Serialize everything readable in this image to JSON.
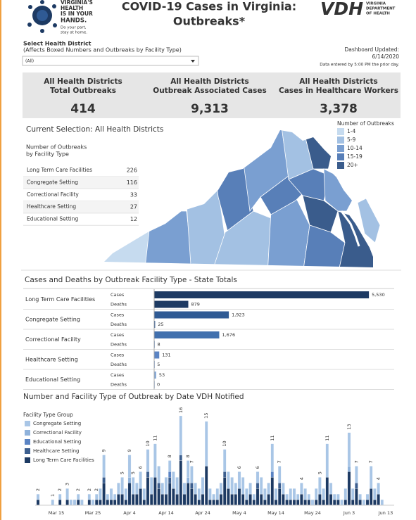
{
  "header": {
    "logo_lines": [
      "VIRGINIA'S",
      "HEALTH",
      "IS IN YOUR",
      "HANDS."
    ],
    "logo_tagline": [
      "Do your part,",
      "stay at home."
    ],
    "title_lines": [
      "COVID-19 Cases in Virginia:",
      "Outbreaks*"
    ],
    "agency_short": "VDH",
    "agency_lines": [
      "VIRGINIA",
      "DEPARTMENT",
      "OF HEALTH"
    ]
  },
  "filter": {
    "label": "Select Health District",
    "note": "(Affects Boxed Numbers and Outbreaks by Facility Type)",
    "selected": "(All)"
  },
  "updated": {
    "label": "Dashboard Updated:",
    "date": "6/14/2020",
    "note": "Data entered by 5:00 PM the prior day."
  },
  "kpis": [
    {
      "label": [
        "All Health Districts",
        "Total Outbreaks"
      ],
      "value": "414"
    },
    {
      "label": [
        "All Health Districts",
        "Outbreak Associated Cases"
      ],
      "value": "9,313"
    },
    {
      "label": [
        "All Health Districts",
        "Cases in Healthcare Workers"
      ],
      "value": "3,378"
    }
  ],
  "selection": {
    "title": "Current Selection: All Health Districts",
    "table_title": [
      "Number of Outbreaks",
      "by Facility Type"
    ],
    "rows": [
      [
        "Long Term Care Facilities",
        226
      ],
      [
        "Congregate Setting",
        116
      ],
      [
        "Correctional Facility",
        33
      ],
      [
        "Healthcare Setting",
        27
      ],
      [
        "Educational Setting",
        12
      ]
    ]
  },
  "map": {
    "legend_title": "Number of Outbreaks",
    "legend": [
      {
        "label": "1-4",
        "color": "#c6dbef"
      },
      {
        "label": "5-9",
        "color": "#a3c1e3"
      },
      {
        "label": "10-14",
        "color": "#7a9fd1"
      },
      {
        "label": "15-19",
        "color": "#587fb8"
      },
      {
        "label": "20+",
        "color": "#3a5c8c"
      }
    ]
  },
  "chart_data": [
    {
      "type": "bar",
      "orientation": "horizontal",
      "title": "Cases and Deaths by Outbreak Facility Type - State Totals",
      "categories": [
        "Long Term Care Facilities",
        "Congregate Setting",
        "Correctional Facility",
        "Healthcare Setting",
        "Educational Setting"
      ],
      "colors": [
        "#1d3a63",
        "#2f5a94",
        "#4170ae",
        "#5b84c4",
        "#86a9d6"
      ],
      "series": [
        {
          "name": "Cases",
          "values": [
            5530,
            1923,
            1676,
            131,
            53
          ],
          "value_labels": [
            "5,530",
            "1,923",
            "1,676",
            "131",
            "53"
          ]
        },
        {
          "name": "Deaths",
          "values": [
            879,
            25,
            8,
            5,
            0
          ]
        }
      ],
      "xlim": [
        0,
        5800
      ]
    },
    {
      "type": "bar",
      "stacked": true,
      "title": "Number and Facility Type of Outbreak by Date VDH Notified",
      "legend_title": "Facility Type Group",
      "categories": [
        null,
        null,
        null,
        null,
        null,
        "Mar 15",
        null,
        null,
        null,
        null,
        null,
        null,
        null,
        null,
        null,
        "Mar 25",
        null,
        null,
        null,
        null,
        null,
        null,
        null,
        null,
        null,
        "Apr 4",
        null,
        null,
        null,
        null,
        null,
        null,
        null,
        null,
        null,
        "Apr 14",
        null,
        null,
        null,
        null,
        null,
        null,
        null,
        null,
        null,
        "Apr 24",
        null,
        null,
        null,
        null,
        null,
        null,
        null,
        null,
        null,
        "May 4",
        null,
        null,
        null,
        null,
        null,
        null,
        null,
        null,
        null,
        "May 14",
        null,
        null,
        null,
        null,
        null,
        null,
        null,
        null,
        null,
        "May 24",
        null,
        null,
        null,
        null,
        null,
        null,
        null,
        null,
        null,
        "Jun 3",
        null,
        null,
        null,
        null,
        null,
        null,
        null,
        null,
        null,
        "Jun 13"
      ],
      "series": [
        {
          "name": "Congregate Setting",
          "color": "#a9c6e6",
          "values": [
            1,
            0,
            0,
            0,
            1,
            0,
            1,
            0,
            2,
            1,
            1,
            1,
            1,
            0,
            1,
            1,
            1,
            2,
            4,
            1,
            2,
            1,
            2,
            3,
            2,
            4,
            3,
            2,
            3,
            2,
            4,
            3,
            6,
            3,
            2,
            3,
            2,
            3,
            3,
            7,
            2,
            3,
            3,
            2,
            2,
            3,
            8,
            2,
            1,
            2,
            2,
            4,
            3,
            3,
            2,
            3,
            3,
            2,
            2,
            1,
            2,
            3,
            2,
            2,
            5,
            2,
            3,
            2,
            1,
            2,
            2,
            1,
            2,
            2,
            1,
            1,
            2,
            3,
            2,
            6,
            2,
            1,
            1,
            1,
            2,
            6,
            2,
            3,
            1,
            1,
            1,
            4,
            2,
            2,
            1,
            0
          ]
        },
        {
          "name": "Correctional Facility",
          "color": "#8fb2db",
          "values": [
            0,
            0,
            0,
            0,
            0,
            0,
            0,
            0,
            0,
            0,
            0,
            0,
            0,
            0,
            0,
            0,
            0,
            0,
            0,
            0,
            0,
            0,
            0,
            0,
            0,
            1,
            0,
            0,
            0,
            0,
            0,
            0,
            0,
            0,
            0,
            0,
            0,
            0,
            0,
            0,
            0,
            1,
            0,
            0,
            0,
            0,
            0,
            0,
            0,
            0,
            0,
            0,
            0,
            0,
            0,
            0,
            0,
            0,
            0,
            0,
            0,
            0,
            0,
            0,
            0,
            0,
            0,
            0,
            0,
            0,
            0,
            0,
            0,
            0,
            0,
            0,
            0,
            0,
            0,
            0,
            0,
            0,
            0,
            0,
            0,
            1,
            0,
            0,
            0,
            0,
            0,
            0,
            0,
            0,
            0,
            0
          ]
        },
        {
          "name": "Educational Setting",
          "color": "#5b84c4",
          "values": [
            0,
            0,
            0,
            0,
            0,
            0,
            0,
            0,
            0,
            0,
            0,
            0,
            0,
            0,
            0,
            0,
            0,
            0,
            0,
            0,
            0,
            0,
            0,
            0,
            0,
            0,
            0,
            0,
            0,
            0,
            0,
            0,
            0,
            0,
            0,
            0,
            1,
            0,
            0,
            0,
            0,
            0,
            0,
            0,
            0,
            0,
            0,
            0,
            0,
            0,
            0,
            0,
            0,
            0,
            0,
            0,
            0,
            0,
            0,
            0,
            0,
            0,
            0,
            0,
            1,
            0,
            0,
            0,
            0,
            0,
            0,
            0,
            0,
            0,
            0,
            0,
            0,
            0,
            0,
            0,
            0,
            0,
            0,
            0,
            0,
            0,
            0,
            0,
            0,
            0,
            0,
            0,
            0,
            0,
            0,
            0
          ]
        },
        {
          "name": "Healthcare Setting",
          "color": "#3d5f8f",
          "values": [
            0,
            0,
            0,
            0,
            0,
            0,
            0,
            0,
            0,
            0,
            0,
            0,
            0,
            0,
            0,
            0,
            0,
            0,
            1,
            0,
            0,
            0,
            0,
            0,
            0,
            0,
            0,
            0,
            0,
            0,
            1,
            0,
            0,
            1,
            0,
            0,
            1,
            0,
            0,
            1,
            0,
            0,
            1,
            0,
            0,
            0,
            0,
            0,
            0,
            0,
            0,
            1,
            0,
            0,
            0,
            0,
            0,
            0,
            0,
            0,
            1,
            0,
            0,
            0,
            0,
            0,
            1,
            0,
            0,
            0,
            0,
            0,
            0,
            0,
            0,
            0,
            0,
            0,
            0,
            0,
            0,
            0,
            0,
            0,
            0,
            0,
            0,
            1,
            0,
            0,
            0,
            0,
            0,
            0,
            0,
            0
          ]
        },
        {
          "name": "Long Term Care Facilities",
          "color": "#1d3a63",
          "values": [
            1,
            0,
            0,
            0,
            0,
            0,
            1,
            0,
            1,
            0,
            0,
            1,
            0,
            0,
            1,
            0,
            1,
            1,
            4,
            1,
            1,
            1,
            2,
            2,
            1,
            4,
            2,
            2,
            3,
            1,
            5,
            2,
            5,
            3,
            2,
            2,
            4,
            3,
            2,
            8,
            2,
            4,
            3,
            2,
            1,
            2,
            7,
            1,
            1,
            1,
            2,
            5,
            3,
            2,
            2,
            3,
            2,
            1,
            2,
            1,
            3,
            2,
            1,
            2,
            5,
            1,
            3,
            2,
            1,
            1,
            1,
            1,
            2,
            1,
            1,
            0,
            1,
            2,
            1,
            5,
            2,
            1,
            1,
            0,
            1,
            6,
            1,
            3,
            1,
            0,
            1,
            3,
            1,
            2,
            0,
            0
          ]
        }
      ],
      "totals": [
        2,
        null,
        null,
        null,
        1,
        null,
        2,
        null,
        3,
        null,
        null,
        2,
        null,
        null,
        2,
        null,
        2,
        null,
        9,
        null,
        null,
        null,
        null,
        5,
        null,
        9,
        5,
        null,
        6,
        null,
        10,
        null,
        11,
        null,
        null,
        null,
        8,
        null,
        null,
        16,
        null,
        8,
        7,
        null,
        null,
        null,
        15,
        null,
        null,
        null,
        null,
        10,
        null,
        null,
        null,
        6,
        null,
        null,
        null,
        null,
        6,
        null,
        null,
        null,
        11,
        null,
        7,
        null,
        null,
        null,
        null,
        null,
        4,
        null,
        null,
        null,
        null,
        5,
        null,
        11,
        null,
        null,
        null,
        null,
        null,
        13,
        null,
        7,
        null,
        null,
        null,
        7,
        null,
        4,
        null,
        null
      ],
      "ylim": [
        0,
        17
      ]
    }
  ]
}
